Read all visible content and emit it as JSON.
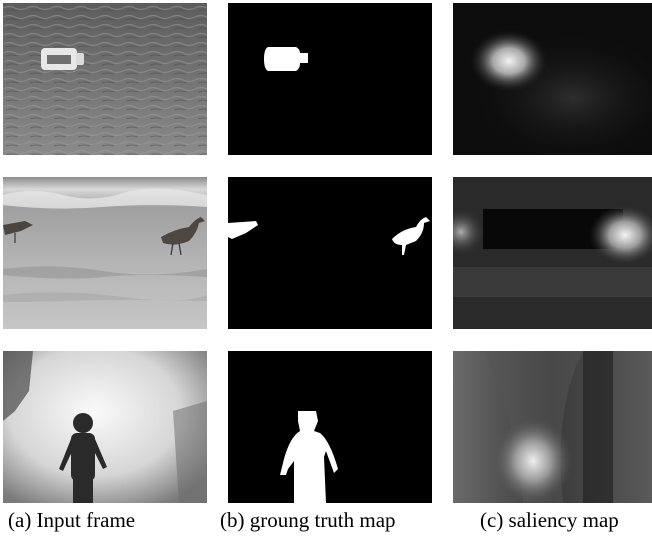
{
  "captions": {
    "a": "(a) Input frame",
    "b": "(b) groung truth map",
    "c": "(c) saliency map"
  },
  "rows": [
    {
      "input": "input-frame-bottle-on-water",
      "ground_truth": "ground-truth-bottle",
      "saliency": "saliency-bottle"
    },
    {
      "input": "input-frame-birds-on-beach",
      "ground_truth": "ground-truth-birds",
      "saliency": "saliency-birds"
    },
    {
      "input": "input-frame-cyclist-in-spray",
      "ground_truth": "ground-truth-cyclist",
      "saliency": "saliency-cyclist"
    }
  ]
}
